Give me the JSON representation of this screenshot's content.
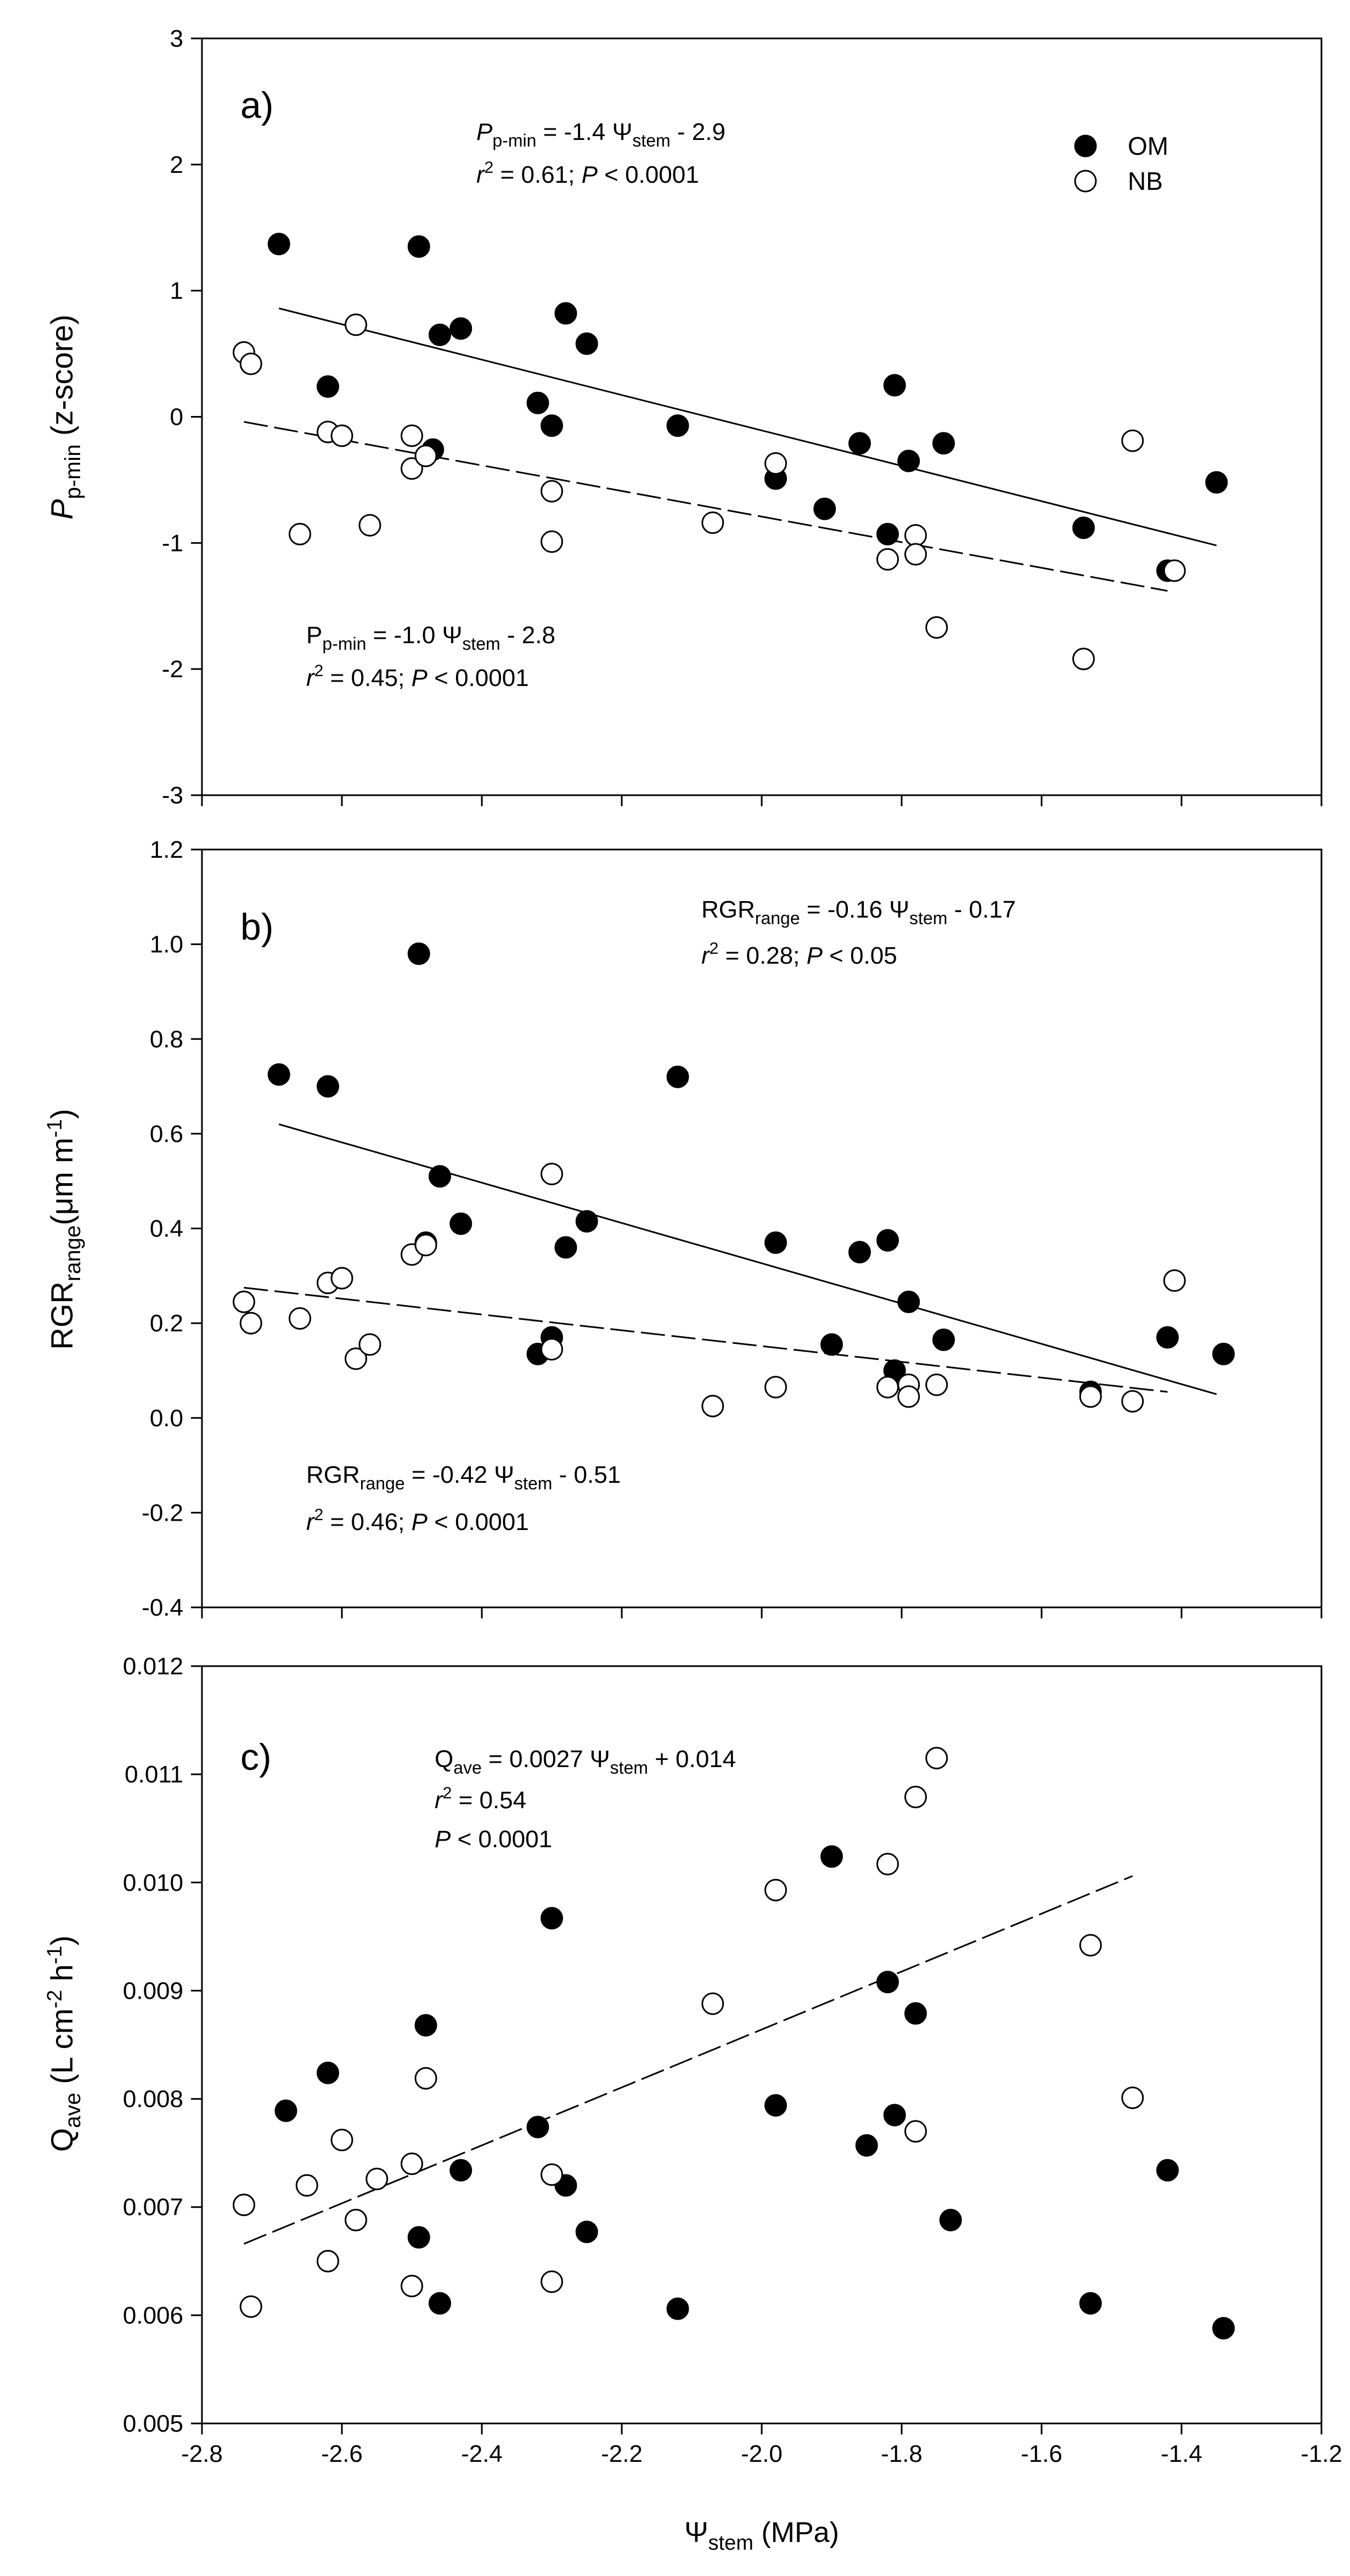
{
  "figure": {
    "x_axis": {
      "label_symbol": "Ψ",
      "label_sub": "stem",
      "label_unit": " (MPa)",
      "min": -2.8,
      "max": -1.2,
      "ticks": [
        -2.8,
        -2.6,
        -2.4,
        -2.2,
        -2.0,
        -1.8,
        -1.6,
        -1.4,
        -1.2
      ],
      "tick_labels": [
        "-2.8",
        "-2.6",
        "-2.4",
        "-2.2",
        "-2.0",
        "-1.8",
        "-1.6",
        "-1.4",
        "-1.2"
      ]
    },
    "legend": {
      "location": "top-right of panel a",
      "items": [
        {
          "name": "OM",
          "marker": "filled-circle",
          "color": "#000000"
        },
        {
          "name": "NB",
          "marker": "open-circle",
          "color": "#000000"
        }
      ]
    }
  },
  "chart_data": [
    {
      "type": "scatter",
      "panel": "a)",
      "ylabel": {
        "main": "P",
        "sub": "p-min",
        "rest": " (z-score)"
      },
      "ylim": [
        -3,
        3
      ],
      "yticks": [
        -3,
        -2,
        -1,
        0,
        1,
        2,
        3
      ],
      "ytick_labels": [
        "-3",
        "-2",
        "-1",
        "0",
        "1",
        "2",
        "3"
      ],
      "series": [
        {
          "name": "OM",
          "marker": "filled",
          "points": [
            [
              -2.69,
              1.37
            ],
            [
              -2.62,
              0.24
            ],
            [
              -2.49,
              1.35
            ],
            [
              -2.47,
              -0.26
            ],
            [
              -2.46,
              0.65
            ],
            [
              -2.43,
              0.7
            ],
            [
              -2.32,
              0.11
            ],
            [
              -2.3,
              -0.07
            ],
            [
              -2.28,
              0.82
            ],
            [
              -2.25,
              0.58
            ],
            [
              -2.12,
              -0.07
            ],
            [
              -1.98,
              -0.49
            ],
            [
              -1.91,
              -0.73
            ],
            [
              -1.86,
              -0.21
            ],
            [
              -1.82,
              -0.93
            ],
            [
              -1.81,
              0.25
            ],
            [
              -1.79,
              -0.35
            ],
            [
              -1.74,
              -0.21
            ],
            [
              -1.54,
              -0.88
            ],
            [
              -1.42,
              -1.22
            ],
            [
              -1.35,
              -0.52
            ]
          ]
        },
        {
          "name": "NB",
          "marker": "open",
          "points": [
            [
              -2.74,
              0.51
            ],
            [
              -2.73,
              0.42
            ],
            [
              -2.66,
              -0.93
            ],
            [
              -2.62,
              -0.12
            ],
            [
              -2.6,
              -0.15
            ],
            [
              -2.58,
              0.73
            ],
            [
              -2.56,
              -0.86
            ],
            [
              -2.5,
              -0.15
            ],
            [
              -2.5,
              -0.41
            ],
            [
              -2.48,
              -0.31
            ],
            [
              -2.3,
              -0.59
            ],
            [
              -2.3,
              -0.99
            ],
            [
              -2.07,
              -0.84
            ],
            [
              -1.98,
              -0.37
            ],
            [
              -1.82,
              -1.13
            ],
            [
              -1.78,
              -0.94
            ],
            [
              -1.78,
              -1.09
            ],
            [
              -1.75,
              -1.67
            ],
            [
              -1.54,
              -1.92
            ],
            [
              -1.47,
              -0.19
            ],
            [
              -1.41,
              -1.22
            ]
          ]
        }
      ],
      "fits": [
        {
          "series": "OM",
          "style": "solid",
          "x": [
            -2.69,
            -1.35
          ],
          "y": [
            0.86,
            -1.02
          ]
        },
        {
          "series": "NB",
          "style": "dashed",
          "x": [
            -2.74,
            -1.42
          ],
          "y": [
            -0.04,
            -1.38
          ]
        }
      ],
      "annotations": [
        {
          "pos": "top",
          "line1": {
            "a": "P",
            "a_italic": true,
            "a_sub": "p-min",
            "b": " = -1.4 Ψ",
            "b_sub": "stem",
            "c": " - 2.9"
          },
          "line2": {
            "r": "r",
            "sup": "2",
            "rest": " = 0.61; ",
            "p": "P",
            "prest": " < 0.0001"
          }
        },
        {
          "pos": "bottom",
          "line1": {
            "a": "P",
            "a_italic": false,
            "a_sub": "p-min",
            "b": " = -1.0 Ψ",
            "b_sub": "stem",
            "c": " - 2.8"
          },
          "line2": {
            "r": "r",
            "sup": "2",
            "rest": " = 0.45; ",
            "p": "P",
            "prest": " < 0.0001"
          }
        }
      ]
    },
    {
      "type": "scatter",
      "panel": "b)",
      "ylabel": {
        "main": "RGR",
        "sub": "range",
        "rest": "(μm m",
        "sup": "-1",
        "close": ")"
      },
      "ylim": [
        -0.4,
        1.2
      ],
      "yticks": [
        -0.4,
        -0.2,
        0.0,
        0.2,
        0.4,
        0.6,
        0.8,
        1.0,
        1.2
      ],
      "ytick_labels": [
        "-0.4",
        "-0.2",
        "0.0",
        "0.2",
        "0.4",
        "0.6",
        "0.8",
        "1.0",
        "1.2"
      ],
      "series": [
        {
          "name": "OM",
          "marker": "filled",
          "points": [
            [
              -2.69,
              0.725
            ],
            [
              -2.62,
              0.7
            ],
            [
              -2.49,
              0.98
            ],
            [
              -2.48,
              0.37
            ],
            [
              -2.46,
              0.51
            ],
            [
              -2.43,
              0.41
            ],
            [
              -2.32,
              0.135
            ],
            [
              -2.3,
              0.17
            ],
            [
              -2.28,
              0.36
            ],
            [
              -2.25,
              0.415
            ],
            [
              -2.12,
              0.72
            ],
            [
              -1.98,
              0.37
            ],
            [
              -1.9,
              0.155
            ],
            [
              -1.86,
              0.35
            ],
            [
              -1.82,
              0.375
            ],
            [
              -1.81,
              0.1
            ],
            [
              -1.79,
              0.245
            ],
            [
              -1.74,
              0.165
            ],
            [
              -1.53,
              0.055
            ],
            [
              -1.42,
              0.17
            ],
            [
              -1.34,
              0.135
            ]
          ]
        },
        {
          "name": "NB",
          "marker": "open",
          "points": [
            [
              -2.74,
              0.245
            ],
            [
              -2.73,
              0.2
            ],
            [
              -2.66,
              0.21
            ],
            [
              -2.62,
              0.285
            ],
            [
              -2.6,
              0.295
            ],
            [
              -2.58,
              0.125
            ],
            [
              -2.56,
              0.155
            ],
            [
              -2.5,
              0.345
            ],
            [
              -2.48,
              0.365
            ],
            [
              -2.3,
              0.515
            ],
            [
              -2.3,
              0.145
            ],
            [
              -2.07,
              0.025
            ],
            [
              -1.98,
              0.065
            ],
            [
              -1.82,
              0.065
            ],
            [
              -1.79,
              0.07
            ],
            [
              -1.79,
              0.045
            ],
            [
              -1.75,
              0.07
            ],
            [
              -1.53,
              0.045
            ],
            [
              -1.47,
              0.035
            ],
            [
              -1.41,
              0.29
            ]
          ]
        }
      ],
      "fits": [
        {
          "series": "OM",
          "style": "solid",
          "x": [
            -2.69,
            -1.35
          ],
          "y": [
            0.62,
            0.05
          ]
        },
        {
          "series": "NB",
          "style": "dashed",
          "x": [
            -2.74,
            -1.42
          ],
          "y": [
            0.275,
            0.055
          ]
        }
      ],
      "annotations": [
        {
          "pos": "top",
          "line1": {
            "a": "RGR",
            "a_italic": false,
            "a_sub": "range",
            "b": " = -0.16 Ψ",
            "b_sub": "stem",
            "c": " - 0.17"
          },
          "line2": {
            "r": "r",
            "sup": "2",
            "rest": " = 0.28; ",
            "p": "P",
            "prest": " < 0.05"
          }
        },
        {
          "pos": "bottom",
          "line1": {
            "a": "RGR",
            "a_italic": false,
            "a_sub": "range",
            "b": " = -0.42 Ψ",
            "b_sub": "stem",
            "c": " - 0.51"
          },
          "line2": {
            "r": "r",
            "sup": "2",
            "rest": "  = 0.46; ",
            "p": "P",
            "prest": " < 0.0001"
          }
        }
      ]
    },
    {
      "type": "scatter",
      "panel": "c)",
      "ylabel": {
        "main": "Q",
        "sub": "ave",
        "rest": " (L cm",
        "sup": "-2",
        "rest2": " h",
        "sup2": "-1",
        "close": ")"
      },
      "ylim": [
        0.005,
        0.012
      ],
      "yticks": [
        0.005,
        0.006,
        0.007,
        0.008,
        0.009,
        0.01,
        0.011,
        0.012
      ],
      "ytick_labels": [
        "0.005",
        "0.006",
        "0.007",
        "0.008",
        "0.009",
        "0.010",
        "0.011",
        "0.012"
      ],
      "series": [
        {
          "name": "OM",
          "marker": "filled",
          "points": [
            [
              -2.68,
              0.00789
            ],
            [
              -2.62,
              0.00824
            ],
            [
              -2.49,
              0.00672
            ],
            [
              -2.48,
              0.00868
            ],
            [
              -2.46,
              0.00611
            ],
            [
              -2.43,
              0.00734
            ],
            [
              -2.32,
              0.00774
            ],
            [
              -2.3,
              0.00967
            ],
            [
              -2.28,
              0.0072
            ],
            [
              -2.25,
              0.00677
            ],
            [
              -2.12,
              0.00606
            ],
            [
              -1.98,
              0.00794
            ],
            [
              -1.9,
              0.01024
            ],
            [
              -1.85,
              0.00757
            ],
            [
              -1.82,
              0.00908
            ],
            [
              -1.81,
              0.00785
            ],
            [
              -1.78,
              0.00879
            ],
            [
              -1.73,
              0.00688
            ],
            [
              -1.53,
              0.00611
            ],
            [
              -1.42,
              0.00734
            ],
            [
              -1.34,
              0.00588
            ]
          ]
        },
        {
          "name": "NB",
          "marker": "open",
          "points": [
            [
              -2.74,
              0.00702
            ],
            [
              -2.73,
              0.00608
            ],
            [
              -2.65,
              0.0072
            ],
            [
              -2.62,
              0.0065
            ],
            [
              -2.6,
              0.00762
            ],
            [
              -2.58,
              0.00688
            ],
            [
              -2.55,
              0.00726
            ],
            [
              -2.5,
              0.0074
            ],
            [
              -2.5,
              0.00627
            ],
            [
              -2.48,
              0.00819
            ],
            [
              -2.3,
              0.0073
            ],
            [
              -2.3,
              0.00631
            ],
            [
              -2.07,
              0.00888
            ],
            [
              -1.98,
              0.00993
            ],
            [
              -1.82,
              0.01017
            ],
            [
              -1.78,
              0.01079
            ],
            [
              -1.78,
              0.0077
            ],
            [
              -1.75,
              0.01115
            ],
            [
              -1.53,
              0.00942
            ],
            [
              -1.47,
              0.00801
            ]
          ]
        }
      ],
      "fits": [
        {
          "series": "NB",
          "style": "dashed",
          "x": [
            -2.74,
            -1.47
          ],
          "y": [
            0.00666,
            0.01006
          ]
        }
      ],
      "annotations": [
        {
          "pos": "top",
          "line1": {
            "a": "Q",
            "a_italic": false,
            "a_sub": "ave",
            "b": " = 0.0027 Ψ",
            "b_sub": "stem",
            "c": " + 0.014"
          },
          "line2": {
            "r": "r",
            "sup": "2",
            "rest": " = 0.54"
          },
          "line3": {
            "p": "P",
            "prest": " < 0.0001"
          }
        }
      ]
    }
  ]
}
